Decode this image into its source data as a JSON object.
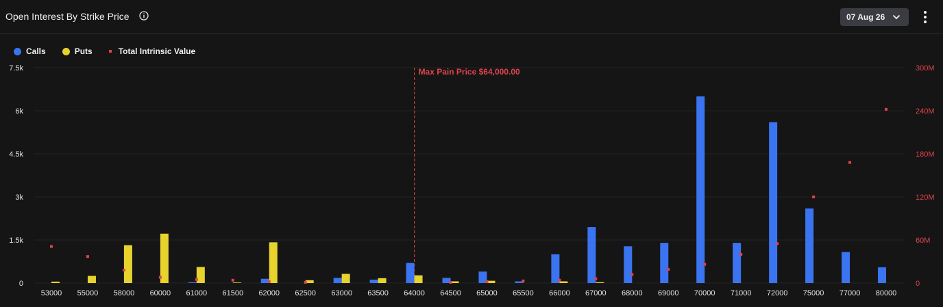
{
  "header": {
    "title": "Open Interest By Strike Price",
    "date_selected": "07 Aug 26"
  },
  "colors": {
    "calls": "#3b74f0",
    "puts": "#e8d22e",
    "intrinsic": "#e0424c",
    "grid": "#242424",
    "axis_text": "#e6e6e6",
    "right_axis_text": "#e0424c"
  },
  "icons": {
    "info": "info-circle-icon",
    "dropdown": "chevron-down-icon",
    "menu": "more-vertical-icon"
  },
  "chart_data": {
    "type": "bar",
    "legend": [
      "Calls",
      "Puts",
      "Total Intrinsic Value"
    ],
    "legend_position": "top-left",
    "categories": [
      "53000",
      "55000",
      "58000",
      "60000",
      "61000",
      "61500",
      "62000",
      "62500",
      "63000",
      "63500",
      "64000",
      "64500",
      "65000",
      "65500",
      "66000",
      "67000",
      "68000",
      "69000",
      "70000",
      "71000",
      "72000",
      "75000",
      "77000",
      "80000"
    ],
    "series": [
      {
        "name": "Calls",
        "type": "bar",
        "axis": "left",
        "values": [
          0,
          0,
          0,
          0,
          30,
          0,
          150,
          0,
          180,
          120,
          700,
          180,
          400,
          60,
          1000,
          1950,
          1280,
          1400,
          6500,
          1400,
          5600,
          2600,
          1080,
          550
        ]
      },
      {
        "name": "Puts",
        "type": "bar",
        "axis": "left",
        "values": [
          50,
          250,
          1320,
          1720,
          560,
          20,
          1420,
          100,
          320,
          170,
          270,
          60,
          80,
          0,
          60,
          30,
          0,
          0,
          0,
          0,
          0,
          0,
          0,
          0
        ]
      },
      {
        "name": "Total Intrinsic Value",
        "type": "scatter",
        "axis": "right",
        "values": [
          51000000,
          37000000,
          18000000,
          8000000,
          5000000,
          4000000,
          2000000,
          1000000,
          0,
          0,
          0,
          1000000,
          2000000,
          3000000,
          4000000,
          6000000,
          12000000,
          19000000,
          26000000,
          40000000,
          55000000,
          120000000,
          168000000,
          242000000
        ]
      }
    ],
    "y_left": {
      "ticks": [
        "0",
        "1.5k",
        "3k",
        "4.5k",
        "6k",
        "7.5k"
      ],
      "min": 0,
      "max": 7500
    },
    "y_right": {
      "ticks": [
        "0",
        "60M",
        "120M",
        "180M",
        "240M",
        "300M"
      ],
      "min": 0,
      "max": 300000000
    },
    "annotation": {
      "label": "Max Pain Price $64,000.00",
      "category": "64000"
    },
    "grid": true
  }
}
